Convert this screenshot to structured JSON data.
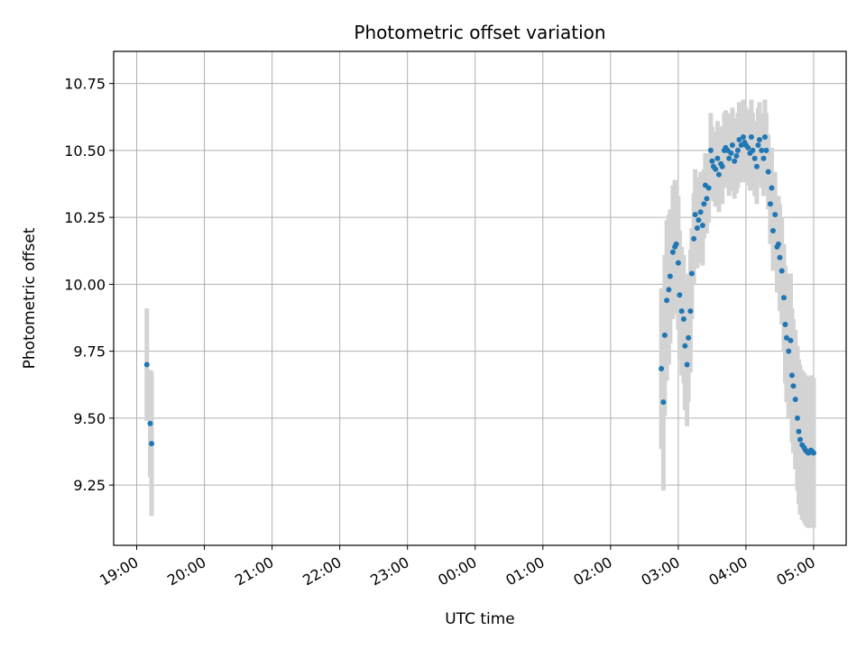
{
  "chart_data": {
    "type": "scatter",
    "title": "Photometric offset variation",
    "xlabel": "UTC time",
    "ylabel": "Photometric offset",
    "x_unit": "hours",
    "xlim": [
      18.66,
      29.48
    ],
    "ylim": [
      9.025,
      10.87
    ],
    "grid": true,
    "xticks": [
      {
        "value": 19,
        "label": "19:00"
      },
      {
        "value": 20,
        "label": "20:00"
      },
      {
        "value": 21,
        "label": "21:00"
      },
      {
        "value": 22,
        "label": "22:00"
      },
      {
        "value": 23,
        "label": "23:00"
      },
      {
        "value": 24,
        "label": "00:00"
      },
      {
        "value": 25,
        "label": "01:00"
      },
      {
        "value": 26,
        "label": "02:00"
      },
      {
        "value": 27,
        "label": "03:00"
      },
      {
        "value": 28,
        "label": "04:00"
      },
      {
        "value": 29,
        "label": "05:00"
      }
    ],
    "yticks": [
      {
        "value": 9.25,
        "label": "9.25"
      },
      {
        "value": 9.5,
        "label": "9.50"
      },
      {
        "value": 9.75,
        "label": "9.75"
      },
      {
        "value": 10.0,
        "label": "10.00"
      },
      {
        "value": 10.25,
        "label": "10.25"
      },
      {
        "value": 10.5,
        "label": "10.50"
      },
      {
        "value": 10.75,
        "label": "10.75"
      }
    ],
    "colors": {
      "points": "#1f77b4",
      "errorbars": "#d3d3d3",
      "grid": "#b0b0b0"
    },
    "series": [
      {
        "x": [
          19.15,
          19.2,
          19.22,
          26.75,
          26.78,
          26.8,
          26.83,
          26.86,
          26.88,
          26.92,
          26.95,
          26.97,
          27.0,
          27.02,
          27.05,
          27.08,
          27.1,
          27.13,
          27.15,
          27.18,
          27.2,
          27.23,
          27.25,
          27.28,
          27.3,
          27.33,
          27.36,
          27.38,
          27.4,
          27.42,
          27.45,
          27.48,
          27.5,
          27.52,
          27.55,
          27.58,
          27.6,
          27.63,
          27.65,
          27.68,
          27.7,
          27.73,
          27.75,
          27.78,
          27.8,
          27.83,
          27.86,
          27.88,
          27.9,
          27.93,
          27.96,
          27.98,
          28.0,
          28.03,
          28.06,
          28.08,
          28.1,
          28.13,
          28.16,
          28.18,
          28.2,
          28.23,
          28.26,
          28.28,
          28.3,
          28.33,
          28.36,
          28.38,
          28.4,
          28.43,
          28.46,
          28.48,
          28.5,
          28.53,
          28.56,
          28.58,
          28.6,
          28.63,
          28.66,
          28.68,
          28.7,
          28.73,
          28.76,
          28.78,
          28.8,
          28.83,
          28.86,
          28.88,
          28.9,
          28.92,
          28.94,
          28.96,
          28.98,
          29.0
        ],
        "y": [
          9.7,
          9.48,
          9.405,
          9.685,
          9.56,
          9.81,
          9.94,
          9.98,
          10.03,
          10.12,
          10.14,
          10.15,
          10.08,
          9.96,
          9.9,
          9.87,
          9.77,
          9.7,
          9.8,
          9.9,
          10.04,
          10.17,
          10.26,
          10.21,
          10.24,
          10.27,
          10.22,
          10.3,
          10.37,
          10.32,
          10.36,
          10.5,
          10.46,
          10.44,
          10.43,
          10.47,
          10.41,
          10.45,
          10.44,
          10.5,
          10.51,
          10.5,
          10.47,
          10.49,
          10.52,
          10.46,
          10.48,
          10.5,
          10.54,
          10.52,
          10.55,
          10.53,
          10.52,
          10.51,
          10.49,
          10.55,
          10.5,
          10.47,
          10.44,
          10.52,
          10.54,
          10.5,
          10.47,
          10.55,
          10.5,
          10.42,
          10.3,
          10.36,
          10.2,
          10.26,
          10.14,
          10.15,
          10.1,
          10.05,
          9.95,
          9.85,
          9.8,
          9.75,
          9.79,
          9.66,
          9.62,
          9.57,
          9.5,
          9.45,
          9.42,
          9.4,
          9.39,
          9.38,
          9.375,
          9.37,
          9.372,
          9.38,
          9.375,
          9.37
        ],
        "err": [
          0.21,
          0.2,
          0.27,
          0.3,
          0.33,
          0.3,
          0.3,
          0.28,
          0.25,
          0.25,
          0.25,
          0.24,
          0.25,
          0.24,
          0.24,
          0.24,
          0.24,
          0.23,
          0.24,
          0.23,
          0.17,
          0.17,
          0.17,
          0.15,
          0.16,
          0.15,
          0.15,
          0.13,
          0.12,
          0.13,
          0.13,
          0.14,
          0.13,
          0.13,
          0.14,
          0.14,
          0.14,
          0.14,
          0.14,
          0.14,
          0.14,
          0.14,
          0.14,
          0.14,
          0.14,
          0.14,
          0.14,
          0.14,
          0.14,
          0.14,
          0.14,
          0.14,
          0.14,
          0.14,
          0.14,
          0.14,
          0.14,
          0.14,
          0.14,
          0.14,
          0.14,
          0.14,
          0.14,
          0.14,
          0.14,
          0.14,
          0.15,
          0.15,
          0.15,
          0.16,
          0.17,
          0.18,
          0.2,
          0.2,
          0.2,
          0.22,
          0.24,
          0.25,
          0.25,
          0.25,
          0.25,
          0.26,
          0.27,
          0.27,
          0.28,
          0.28,
          0.28,
          0.28,
          0.28,
          0.28,
          0.28,
          0.28,
          0.28,
          0.28
        ]
      }
    ]
  }
}
